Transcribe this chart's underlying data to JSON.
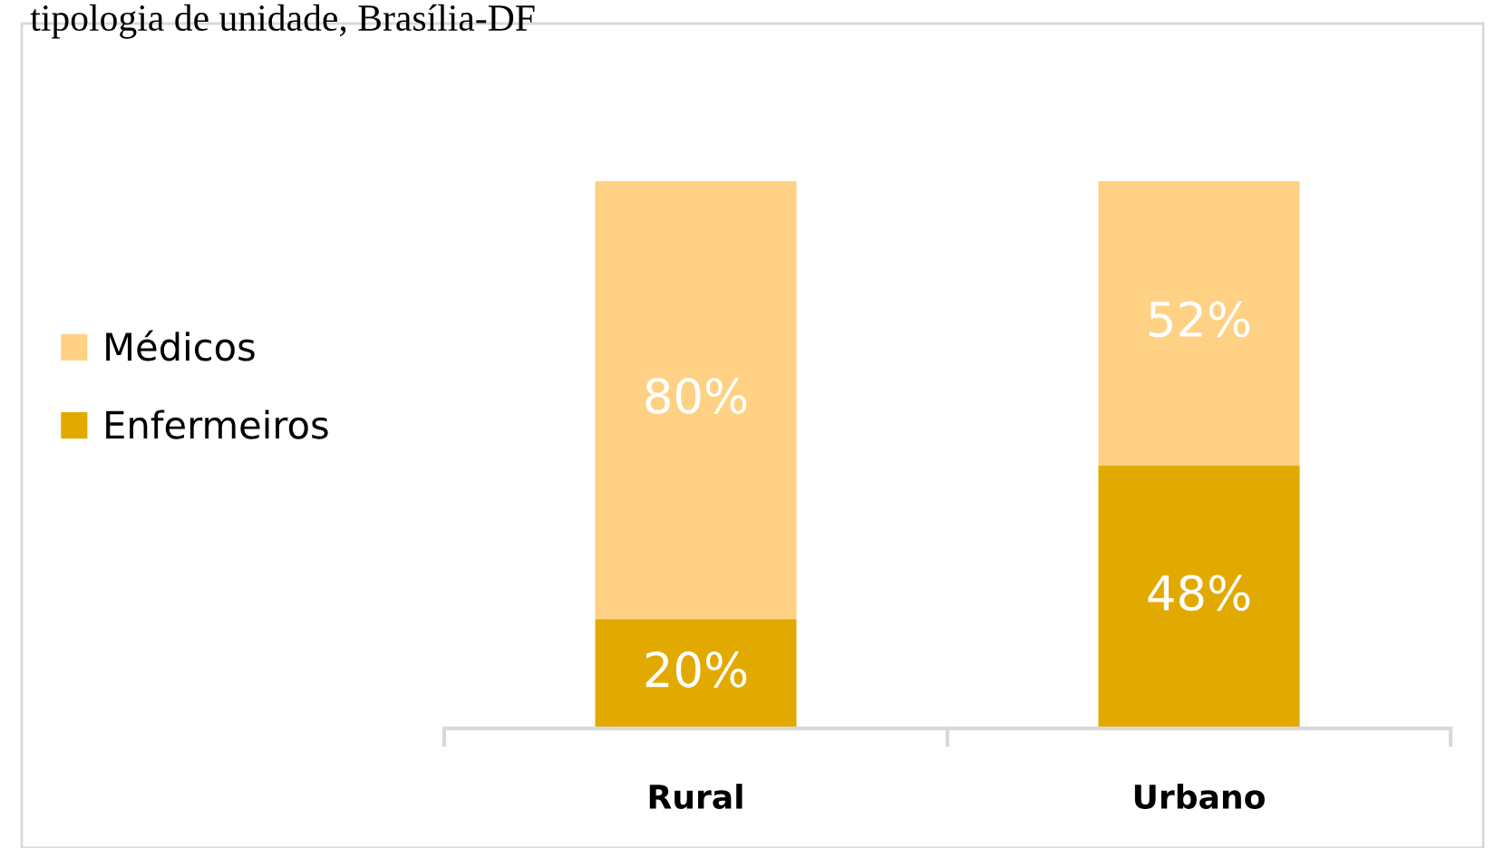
{
  "chart_data": {
    "type": "bar",
    "title": "tipologia de unidade, Brasília-DF",
    "categories": [
      "Rural",
      "Urbano"
    ],
    "stacked": true,
    "legend": "left",
    "series": [
      {
        "name": "Enfermeiros",
        "color": "#e2aa00",
        "values": [
          20,
          48
        ],
        "value_labels": [
          "20%",
          "48%"
        ]
      },
      {
        "name": "Médicos",
        "color": "#fed184",
        "values": [
          80,
          52
        ],
        "value_labels": [
          "80%",
          "52%"
        ]
      }
    ]
  }
}
